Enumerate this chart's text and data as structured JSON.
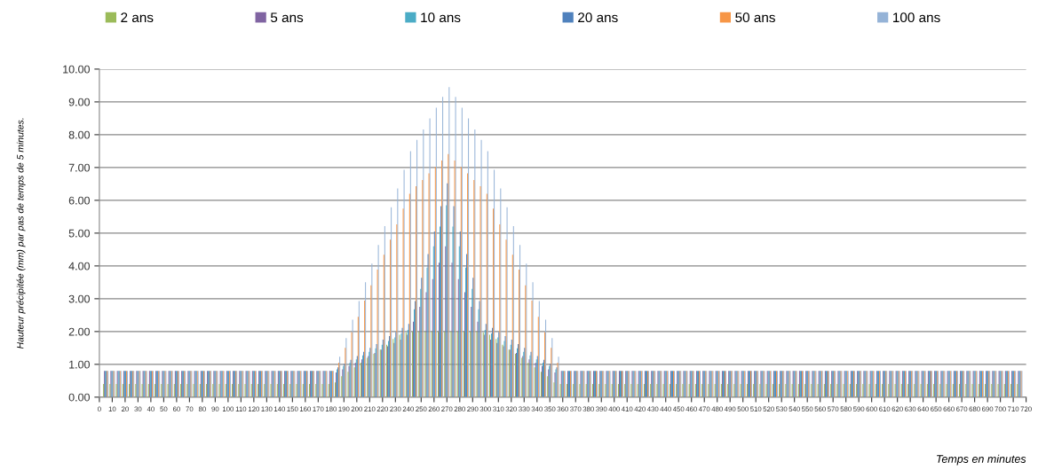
{
  "chart_data": {
    "type": "bar",
    "xlabel": "Temps en minutes",
    "ylabel": "Hauteur précipitée (mm) par pas de temps de 5 minutes.",
    "x": [
      5,
      10,
      15,
      20,
      25,
      30,
      35,
      40,
      45,
      50,
      55,
      60,
      65,
      70,
      75,
      80,
      85,
      90,
      95,
      100,
      105,
      110,
      115,
      120,
      125,
      130,
      135,
      140,
      145,
      150,
      155,
      160,
      165,
      170,
      175,
      180,
      185,
      190,
      195,
      200,
      205,
      210,
      215,
      220,
      225,
      230,
      235,
      240,
      245,
      250,
      255,
      260,
      265,
      270,
      275,
      280,
      285,
      290,
      295,
      300,
      305,
      310,
      315,
      320,
      325,
      330,
      335,
      340,
      345,
      350,
      355,
      360,
      365,
      370,
      375,
      380,
      385,
      390,
      395,
      400,
      405,
      410,
      415,
      420,
      425,
      430,
      435,
      440,
      445,
      450,
      455,
      460,
      465,
      470,
      475,
      480,
      485,
      490,
      495,
      500,
      505,
      510,
      515,
      520,
      525,
      530,
      535,
      540,
      545,
      550,
      555,
      560,
      565,
      570,
      575,
      580,
      585,
      590,
      595,
      600,
      605,
      610,
      615,
      620,
      625,
      630,
      635,
      640,
      645,
      650,
      655,
      660,
      665,
      670,
      675,
      680,
      685,
      690,
      695,
      700,
      705,
      710,
      715
    ],
    "series": [
      {
        "name": "2 ans",
        "color": "#9bbb59",
        "values": [
          0.4,
          0.4,
          0.4,
          0.4,
          0.4,
          0.4,
          0.4,
          0.4,
          0.4,
          0.4,
          0.4,
          0.4,
          0.4,
          0.4,
          0.4,
          0.4,
          0.4,
          0.4,
          0.4,
          0.4,
          0.4,
          0.4,
          0.4,
          0.4,
          0.4,
          0.4,
          0.4,
          0.4,
          0.4,
          0.4,
          0.4,
          0.4,
          0.4,
          0.4,
          0.4,
          0.4,
          0.45,
          0.64,
          0.77,
          0.91,
          1.05,
          1.2,
          1.32,
          1.45,
          1.6,
          1.77,
          1.9,
          1.97,
          2,
          2,
          2,
          2,
          2,
          2,
          2,
          2,
          2,
          2,
          2,
          1.97,
          1.9,
          1.77,
          1.6,
          1.45,
          1.32,
          1.2,
          1.05,
          0.91,
          0.77,
          0.64,
          0.45,
          0.4,
          0.4,
          0.4,
          0.4,
          0.4,
          0.4,
          0.4,
          0.4,
          0.4,
          0.4,
          0.4,
          0.4,
          0.4,
          0.4,
          0.4,
          0.4,
          0.4,
          0.4,
          0.4,
          0.4,
          0.4,
          0.4,
          0.4,
          0.4,
          0.4,
          0.4,
          0.4,
          0.4,
          0.4,
          0.4,
          0.4,
          0.4,
          0.4,
          0.4,
          0.4,
          0.4,
          0.4,
          0.4,
          0.4,
          0.4,
          0.4,
          0.4,
          0.4,
          0.4,
          0.4,
          0.4,
          0.4,
          0.4,
          0.4,
          0.4,
          0.4,
          0.4,
          0.4,
          0.4,
          0.4,
          0.4,
          0.4,
          0.4,
          0.4,
          0.4,
          0.4,
          0.4,
          0.4,
          0.4,
          0.4,
          0.4,
          0.4,
          0.4,
          0.4,
          0.4,
          0.4,
          0.4
        ]
      },
      {
        "name": "5 ans",
        "color": "#8064a2",
        "values": [
          0.8,
          0.8,
          0.8,
          0.8,
          0.8,
          0.8,
          0.8,
          0.8,
          0.8,
          0.8,
          0.8,
          0.8,
          0.8,
          0.8,
          0.8,
          0.8,
          0.8,
          0.8,
          0.8,
          0.8,
          0.8,
          0.8,
          0.8,
          0.8,
          0.8,
          0.8,
          0.8,
          0.8,
          0.8,
          0.8,
          0.8,
          0.8,
          0.8,
          0.8,
          0.8,
          0.8,
          0.75,
          0.85,
          0.95,
          1.05,
          1.15,
          1.25,
          1.35,
          1.45,
          1.55,
          1.65,
          1.75,
          1.9,
          2.3,
          2.75,
          3.2,
          3.6,
          4.1,
          4.6,
          4.1,
          3.6,
          3.2,
          2.75,
          2.3,
          1.9,
          1.75,
          1.65,
          1.55,
          1.45,
          1.35,
          1.25,
          1.15,
          1.05,
          0.95,
          0.85,
          0.75,
          0.8,
          0.8,
          0.8,
          0.8,
          0.8,
          0.8,
          0.8,
          0.8,
          0.8,
          0.8,
          0.8,
          0.8,
          0.8,
          0.8,
          0.8,
          0.8,
          0.8,
          0.8,
          0.8,
          0.8,
          0.8,
          0.8,
          0.8,
          0.8,
          0.8,
          0.8,
          0.8,
          0.8,
          0.8,
          0.8,
          0.8,
          0.8,
          0.8,
          0.8,
          0.8,
          0.8,
          0.8,
          0.8,
          0.8,
          0.8,
          0.8,
          0.8,
          0.8,
          0.8,
          0.8,
          0.8,
          0.8,
          0.8,
          0.8,
          0.8,
          0.8,
          0.8,
          0.8,
          0.8,
          0.8,
          0.8,
          0.8,
          0.8,
          0.8,
          0.8,
          0.8,
          0.8,
          0.8,
          0.8,
          0.8,
          0.8,
          0.8,
          0.8,
          0.8,
          0.8,
          0.8,
          0.8
        ]
      },
      {
        "name": "10 ans",
        "color": "#4bacc6",
        "values": [
          0.8,
          0.8,
          0.8,
          0.8,
          0.8,
          0.8,
          0.8,
          0.8,
          0.8,
          0.8,
          0.8,
          0.8,
          0.8,
          0.8,
          0.8,
          0.8,
          0.8,
          0.8,
          0.8,
          0.8,
          0.8,
          0.8,
          0.8,
          0.8,
          0.8,
          0.8,
          0.8,
          0.8,
          0.8,
          0.8,
          0.8,
          0.8,
          0.8,
          0.8,
          0.8,
          0.8,
          0.85,
          0.95,
          1.05,
          1.15,
          1.27,
          1.38,
          1.49,
          1.6,
          1.71,
          1.82,
          1.94,
          2.05,
          2.68,
          3.3,
          3.95,
          4.6,
          5.2,
          5.85,
          5.2,
          4.6,
          3.95,
          3.3,
          2.68,
          2.05,
          1.94,
          1.82,
          1.71,
          1.6,
          1.49,
          1.38,
          1.27,
          1.15,
          1.05,
          0.95,
          0.85,
          0.8,
          0.8,
          0.8,
          0.8,
          0.8,
          0.8,
          0.8,
          0.8,
          0.8,
          0.8,
          0.8,
          0.8,
          0.8,
          0.8,
          0.8,
          0.8,
          0.8,
          0.8,
          0.8,
          0.8,
          0.8,
          0.8,
          0.8,
          0.8,
          0.8,
          0.8,
          0.8,
          0.8,
          0.8,
          0.8,
          0.8,
          0.8,
          0.8,
          0.8,
          0.8,
          0.8,
          0.8,
          0.8,
          0.8,
          0.8,
          0.8,
          0.8,
          0.8,
          0.8,
          0.8,
          0.8,
          0.8,
          0.8,
          0.8,
          0.8,
          0.8,
          0.8,
          0.8,
          0.8,
          0.8,
          0.8,
          0.8,
          0.8,
          0.8,
          0.8,
          0.8,
          0.8,
          0.8,
          0.8,
          0.8,
          0.8,
          0.8,
          0.8,
          0.8,
          0.8,
          0.8,
          0.8
        ]
      },
      {
        "name": "20 ans",
        "color": "#4f81bd",
        "values": [
          0.8,
          0.8,
          0.8,
          0.8,
          0.8,
          0.8,
          0.8,
          0.8,
          0.8,
          0.8,
          0.8,
          0.8,
          0.8,
          0.8,
          0.8,
          0.8,
          0.8,
          0.8,
          0.8,
          0.8,
          0.8,
          0.8,
          0.8,
          0.8,
          0.8,
          0.8,
          0.8,
          0.8,
          0.8,
          0.8,
          0.8,
          0.8,
          0.8,
          0.8,
          0.8,
          0.8,
          0.91,
          1.02,
          1.14,
          1.25,
          1.38,
          1.5,
          1.62,
          1.75,
          1.86,
          1.98,
          2.11,
          2.23,
          2.93,
          3.64,
          4.36,
          5.05,
          5.82,
          6.52,
          5.82,
          5.05,
          4.36,
          3.64,
          2.93,
          2.23,
          2.11,
          1.98,
          1.86,
          1.75,
          1.62,
          1.5,
          1.38,
          1.25,
          1.14,
          1.02,
          0.91,
          0.8,
          0.8,
          0.8,
          0.8,
          0.8,
          0.8,
          0.8,
          0.8,
          0.8,
          0.8,
          0.8,
          0.8,
          0.8,
          0.8,
          0.8,
          0.8,
          0.8,
          0.8,
          0.8,
          0.8,
          0.8,
          0.8,
          0.8,
          0.8,
          0.8,
          0.8,
          0.8,
          0.8,
          0.8,
          0.8,
          0.8,
          0.8,
          0.8,
          0.8,
          0.8,
          0.8,
          0.8,
          0.8,
          0.8,
          0.8,
          0.8,
          0.8,
          0.8,
          0.8,
          0.8,
          0.8,
          0.8,
          0.8,
          0.8,
          0.8,
          0.8,
          0.8,
          0.8,
          0.8,
          0.8,
          0.8,
          0.8,
          0.8,
          0.8,
          0.8,
          0.8,
          0.8,
          0.8,
          0.8,
          0.8,
          0.8,
          0.8,
          0.8,
          0.8,
          0.8,
          0.8,
          0.8
        ]
      },
      {
        "name": "50 ans",
        "color": "#f79646",
        "values": [
          0.8,
          0.8,
          0.8,
          0.8,
          0.8,
          0.8,
          0.8,
          0.8,
          0.8,
          0.8,
          0.8,
          0.8,
          0.8,
          0.8,
          0.8,
          0.8,
          0.8,
          0.8,
          0.8,
          0.8,
          0.8,
          0.8,
          0.8,
          0.8,
          0.8,
          0.8,
          0.8,
          0.8,
          0.8,
          0.8,
          0.8,
          0.8,
          0.8,
          0.8,
          0.8,
          0.8,
          1.05,
          1.5,
          1.98,
          2.45,
          2.94,
          3.41,
          3.89,
          4.34,
          4.8,
          5.27,
          5.75,
          6.2,
          6.43,
          6.62,
          6.82,
          7.02,
          7.21,
          7.41,
          7.21,
          7.02,
          6.82,
          6.62,
          6.43,
          6.2,
          5.75,
          5.27,
          4.8,
          4.34,
          3.89,
          3.41,
          2.94,
          2.45,
          1.98,
          1.5,
          1.05,
          0.8,
          0.8,
          0.8,
          0.8,
          0.8,
          0.8,
          0.8,
          0.8,
          0.8,
          0.8,
          0.8,
          0.8,
          0.8,
          0.8,
          0.8,
          0.8,
          0.8,
          0.8,
          0.8,
          0.8,
          0.8,
          0.8,
          0.8,
          0.8,
          0.8,
          0.8,
          0.8,
          0.8,
          0.8,
          0.8,
          0.8,
          0.8,
          0.8,
          0.8,
          0.8,
          0.8,
          0.8,
          0.8,
          0.8,
          0.8,
          0.8,
          0.8,
          0.8,
          0.8,
          0.8,
          0.8,
          0.8,
          0.8,
          0.8,
          0.8,
          0.8,
          0.8,
          0.8,
          0.8,
          0.8,
          0.8,
          0.8,
          0.8,
          0.8,
          0.8,
          0.8,
          0.8,
          0.8,
          0.8,
          0.8,
          0.8,
          0.8,
          0.8,
          0.8,
          0.8,
          0.8,
          0.8
        ]
      },
      {
        "name": "100 ans",
        "color": "#95b3d7",
        "values": [
          0.8,
          0.8,
          0.8,
          0.8,
          0.8,
          0.8,
          0.8,
          0.8,
          0.8,
          0.8,
          0.8,
          0.8,
          0.8,
          0.8,
          0.8,
          0.8,
          0.8,
          0.8,
          0.8,
          0.8,
          0.8,
          0.8,
          0.8,
          0.8,
          0.8,
          0.8,
          0.8,
          0.8,
          0.8,
          0.8,
          0.8,
          0.8,
          0.8,
          0.8,
          0.8,
          0.8,
          1.23,
          1.8,
          2.36,
          2.93,
          3.5,
          4.07,
          4.64,
          5.21,
          5.79,
          6.36,
          6.93,
          7.5,
          7.84,
          8.16,
          8.5,
          8.82,
          9.15,
          9.45,
          9.15,
          8.82,
          8.5,
          8.16,
          7.84,
          7.5,
          6.93,
          6.36,
          5.79,
          5.21,
          4.64,
          4.07,
          3.5,
          2.93,
          2.36,
          1.8,
          1.23,
          0.8,
          0.8,
          0.8,
          0.8,
          0.8,
          0.8,
          0.8,
          0.8,
          0.8,
          0.8,
          0.8,
          0.8,
          0.8,
          0.8,
          0.8,
          0.8,
          0.8,
          0.8,
          0.8,
          0.8,
          0.8,
          0.8,
          0.8,
          0.8,
          0.8,
          0.8,
          0.8,
          0.8,
          0.8,
          0.8,
          0.8,
          0.8,
          0.8,
          0.8,
          0.8,
          0.8,
          0.8,
          0.8,
          0.8,
          0.8,
          0.8,
          0.8,
          0.8,
          0.8,
          0.8,
          0.8,
          0.8,
          0.8,
          0.8,
          0.8,
          0.8,
          0.8,
          0.8,
          0.8,
          0.8,
          0.8,
          0.8,
          0.8,
          0.8,
          0.8,
          0.8,
          0.8,
          0.8,
          0.8,
          0.8,
          0.8,
          0.8,
          0.8,
          0.8,
          0.8,
          0.8,
          0.8
        ]
      }
    ],
    "xlim": [
      0,
      720
    ],
    "xticks": [
      0,
      10,
      20,
      30,
      40,
      50,
      60,
      70,
      80,
      90,
      100,
      110,
      120,
      130,
      140,
      150,
      160,
      170,
      180,
      190,
      200,
      210,
      220,
      230,
      240,
      250,
      260,
      270,
      280,
      290,
      300,
      310,
      320,
      330,
      340,
      350,
      360,
      370,
      380,
      390,
      400,
      410,
      420,
      430,
      440,
      450,
      460,
      470,
      480,
      490,
      500,
      510,
      520,
      530,
      540,
      550,
      560,
      570,
      580,
      590,
      600,
      610,
      620,
      630,
      640,
      650,
      660,
      670,
      680,
      690,
      700,
      710,
      720
    ],
    "ylim": [
      0,
      10
    ],
    "yticks": [
      {
        "value": 0,
        "label": "0.00"
      },
      {
        "value": 1,
        "label": "1.00"
      },
      {
        "value": 2,
        "label": "2.00"
      },
      {
        "value": 3,
        "label": "3.00"
      },
      {
        "value": 4,
        "label": "4.00"
      },
      {
        "value": 5,
        "label": "5.00"
      },
      {
        "value": 6,
        "label": "6.00"
      },
      {
        "value": 7,
        "label": "7.00"
      },
      {
        "value": 8,
        "label": "8.00"
      },
      {
        "value": 9,
        "label": "9.00"
      },
      {
        "value": 10,
        "label": "10.00"
      }
    ],
    "grid": "y",
    "legend": "top"
  }
}
